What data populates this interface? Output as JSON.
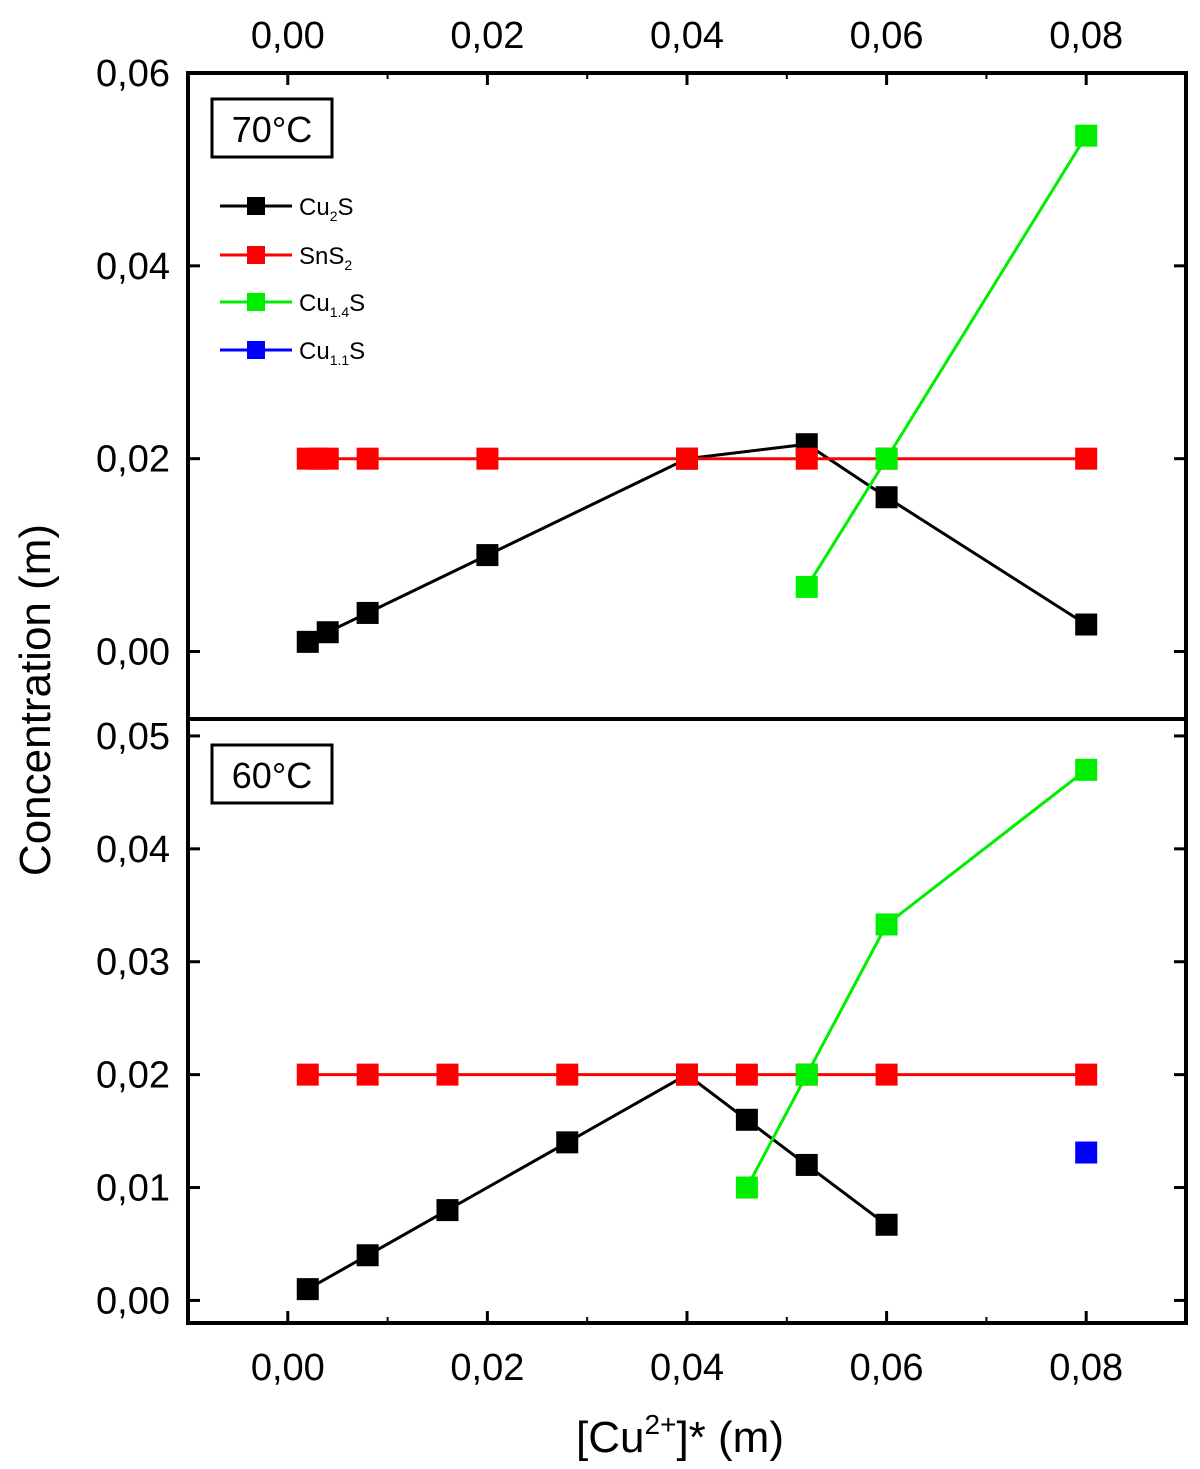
{
  "chart_data": {
    "type": "line",
    "xlabel": {
      "prefix": "[Cu",
      "sup": "2+",
      "suffix": "]* (m)"
    },
    "ylabel": "Concentration (m)",
    "xlim": [
      -0.01,
      0.09
    ],
    "xticks": [
      "0,00",
      "0,02",
      "0,04",
      "0,06",
      "0,08"
    ],
    "xtick_values": [
      0,
      0.02,
      0.04,
      0.06,
      0.08
    ],
    "legend": [
      {
        "base": "Cu",
        "sub": "2",
        "tail": "S",
        "color": "#000000"
      },
      {
        "base": "SnS",
        "sub": "2",
        "tail": "",
        "color": "#ff0000"
      },
      {
        "base": "Cu",
        "sub": "1.4",
        "tail": "S",
        "color": "#00ee00"
      },
      {
        "base": "Cu",
        "sub": "1.1",
        "tail": "S",
        "color": "#0000ff"
      }
    ],
    "panels": [
      {
        "label": "70°C",
        "ylim": [
          -0.007,
          0.06
        ],
        "yticks": [
          "0,00",
          "0,02",
          "0,04",
          "0,06"
        ],
        "ytick_values": [
          0,
          0.02,
          0.04,
          0.06
        ],
        "series": [
          {
            "name": "Cu2S",
            "color": "#000000",
            "x": [
              0.002,
              0.004,
              0.008,
              0.02,
              0.04,
              0.052,
              0.06,
              0.08
            ],
            "y": [
              0.001,
              0.002,
              0.004,
              0.01,
              0.02,
              0.0215,
              0.016,
              0.0028
            ]
          },
          {
            "name": "SnS2",
            "color": "#ff0000",
            "x": [
              0.002,
              0.003,
              0.004,
              0.008,
              0.02,
              0.04,
              0.052,
              0.06,
              0.08
            ],
            "y": [
              0.02,
              0.02,
              0.02,
              0.02,
              0.02,
              0.02,
              0.02,
              0.02,
              0.02
            ]
          },
          {
            "name": "Cu1.4S",
            "color": "#00ee00",
            "x": [
              0.052,
              0.06,
              0.08
            ],
            "y": [
              0.0067,
              0.02,
              0.0535
            ]
          },
          {
            "name": "Cu1.1S",
            "color": "#0000ff",
            "x": [],
            "y": []
          }
        ]
      },
      {
        "label": "60°C",
        "ylim": [
          -0.002,
          0.0515
        ],
        "yticks": [
          "0,00",
          "0,01",
          "0,02",
          "0,03",
          "0,04",
          "0,05"
        ],
        "ytick_values": [
          0,
          0.01,
          0.02,
          0.03,
          0.04,
          0.05
        ],
        "series": [
          {
            "name": "Cu2S",
            "color": "#000000",
            "x": [
              0.002,
              0.008,
              0.016,
              0.028,
              0.04,
              0.046,
              0.052,
              0.06
            ],
            "y": [
              0.001,
              0.004,
              0.008,
              0.014,
              0.02,
              0.016,
              0.012,
              0.0067
            ]
          },
          {
            "name": "SnS2",
            "color": "#ff0000",
            "x": [
              0.002,
              0.008,
              0.016,
              0.028,
              0.04,
              0.046,
              0.052,
              0.06,
              0.08
            ],
            "y": [
              0.02,
              0.02,
              0.02,
              0.02,
              0.02,
              0.02,
              0.02,
              0.02,
              0.02
            ]
          },
          {
            "name": "Cu1.4S",
            "color": "#00ee00",
            "x": [
              0.046,
              0.052,
              0.06,
              0.08
            ],
            "y": [
              0.01,
              0.02,
              0.0333,
              0.047
            ]
          },
          {
            "name": "Cu1.1S",
            "color": "#0000ff",
            "x": [
              0.08
            ],
            "y": [
              0.0131
            ]
          }
        ]
      }
    ]
  }
}
